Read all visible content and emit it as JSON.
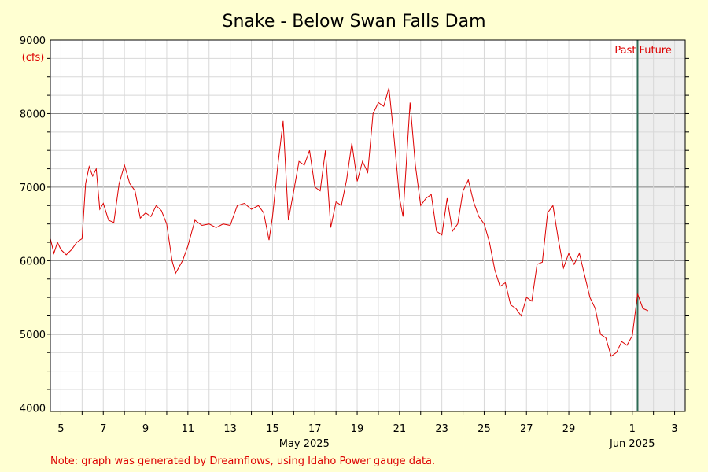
{
  "chart_data": {
    "type": "line",
    "title": "Snake - Below Swan Falls Dam",
    "y_unit": "(cfs)",
    "ylim": [
      3950,
      9000
    ],
    "xlim": [
      "2025-05-04T12:00",
      "2025-06-03T12:00"
    ],
    "y_ticks": [
      4000,
      5000,
      6000,
      7000,
      8000,
      9000
    ],
    "x_ticks": [
      {
        "label": "5",
        "date": "2025-05-05"
      },
      {
        "label": "7",
        "date": "2025-05-07"
      },
      {
        "label": "9",
        "date": "2025-05-09"
      },
      {
        "label": "11",
        "date": "2025-05-11"
      },
      {
        "label": "13",
        "date": "2025-05-13"
      },
      {
        "label": "15",
        "date": "2025-05-15"
      },
      {
        "label": "17",
        "date": "2025-05-17"
      },
      {
        "label": "19",
        "date": "2025-05-19"
      },
      {
        "label": "21",
        "date": "2025-05-21"
      },
      {
        "label": "23",
        "date": "2025-05-23"
      },
      {
        "label": "25",
        "date": "2025-05-25"
      },
      {
        "label": "27",
        "date": "2025-05-27"
      },
      {
        "label": "29",
        "date": "2025-05-29"
      },
      {
        "label": "1",
        "date": "2025-06-01"
      },
      {
        "label": "3",
        "date": "2025-06-03"
      }
    ],
    "month_labels": [
      {
        "label": "May 2025",
        "date": "2025-05-16T12:00"
      },
      {
        "label": "Jun 2025",
        "date": "2025-06-01"
      }
    ],
    "now": "2025-06-01T06:00",
    "past_label": "Past",
    "future_label": "Future",
    "grid": true,
    "line_color": "#DD0000",
    "now_line_color": "#2E6B55",
    "future_shade_color": "#EEEEEE",
    "series": [
      {
        "points": [
          [
            "2025-05-04T12:00",
            6300
          ],
          [
            "2025-05-04T16:00",
            6100
          ],
          [
            "2025-05-04T20:00",
            6250
          ],
          [
            "2025-05-05T00:00",
            6150
          ],
          [
            "2025-05-05T06:00",
            6080
          ],
          [
            "2025-05-05T12:00",
            6150
          ],
          [
            "2025-05-05T18:00",
            6250
          ],
          [
            "2025-05-06T00:00",
            6300
          ],
          [
            "2025-05-06T04:00",
            7050
          ],
          [
            "2025-05-06T08:00",
            7280
          ],
          [
            "2025-05-06T12:00",
            7150
          ],
          [
            "2025-05-06T16:00",
            7250
          ],
          [
            "2025-05-06T20:00",
            6700
          ],
          [
            "2025-05-07T00:00",
            6780
          ],
          [
            "2025-05-07T06:00",
            6550
          ],
          [
            "2025-05-07T12:00",
            6520
          ],
          [
            "2025-05-07T18:00",
            7050
          ],
          [
            "2025-05-08T00:00",
            7300
          ],
          [
            "2025-05-08T06:00",
            7050
          ],
          [
            "2025-05-08T12:00",
            6950
          ],
          [
            "2025-05-08T18:00",
            6580
          ],
          [
            "2025-05-09T00:00",
            6650
          ],
          [
            "2025-05-09T06:00",
            6600
          ],
          [
            "2025-05-09T12:00",
            6750
          ],
          [
            "2025-05-09T18:00",
            6680
          ],
          [
            "2025-05-10T00:00",
            6500
          ],
          [
            "2025-05-10T06:00",
            6000
          ],
          [
            "2025-05-10T10:00",
            5830
          ],
          [
            "2025-05-10T18:00",
            6000
          ],
          [
            "2025-05-11T00:00",
            6200
          ],
          [
            "2025-05-11T08:00",
            6550
          ],
          [
            "2025-05-11T16:00",
            6480
          ],
          [
            "2025-05-12T00:00",
            6500
          ],
          [
            "2025-05-12T08:00",
            6450
          ],
          [
            "2025-05-12T16:00",
            6500
          ],
          [
            "2025-05-13T00:00",
            6480
          ],
          [
            "2025-05-13T08:00",
            6750
          ],
          [
            "2025-05-13T16:00",
            6780
          ],
          [
            "2025-05-14T00:00",
            6700
          ],
          [
            "2025-05-14T08:00",
            6750
          ],
          [
            "2025-05-14T14:00",
            6650
          ],
          [
            "2025-05-14T20:00",
            6280
          ],
          [
            "2025-05-15T00:00",
            6600
          ],
          [
            "2025-05-15T06:00",
            7300
          ],
          [
            "2025-05-15T12:00",
            7900
          ],
          [
            "2025-05-15T18:00",
            6550
          ],
          [
            "2025-05-16T00:00",
            6950
          ],
          [
            "2025-05-16T06:00",
            7350
          ],
          [
            "2025-05-16T12:00",
            7300
          ],
          [
            "2025-05-16T18:00",
            7500
          ],
          [
            "2025-05-17T00:00",
            7000
          ],
          [
            "2025-05-17T06:00",
            6950
          ],
          [
            "2025-05-17T12:00",
            7500
          ],
          [
            "2025-05-17T18:00",
            6450
          ],
          [
            "2025-05-18T00:00",
            6800
          ],
          [
            "2025-05-18T06:00",
            6750
          ],
          [
            "2025-05-18T12:00",
            7100
          ],
          [
            "2025-05-18T18:00",
            7600
          ],
          [
            "2025-05-19T00:00",
            7080
          ],
          [
            "2025-05-19T06:00",
            7350
          ],
          [
            "2025-05-19T12:00",
            7200
          ],
          [
            "2025-05-19T18:00",
            8000
          ],
          [
            "2025-05-20T00:00",
            8150
          ],
          [
            "2025-05-20T06:00",
            8100
          ],
          [
            "2025-05-20T12:00",
            8350
          ],
          [
            "2025-05-20T18:00",
            7650
          ],
          [
            "2025-05-21T00:00",
            6850
          ],
          [
            "2025-05-21T04:00",
            6600
          ],
          [
            "2025-05-21T12:00",
            8150
          ],
          [
            "2025-05-21T18:00",
            7300
          ],
          [
            "2025-05-22T00:00",
            6750
          ],
          [
            "2025-05-22T06:00",
            6850
          ],
          [
            "2025-05-22T12:00",
            6900
          ],
          [
            "2025-05-22T18:00",
            6400
          ],
          [
            "2025-05-23T00:00",
            6350
          ],
          [
            "2025-05-23T06:00",
            6850
          ],
          [
            "2025-05-23T12:00",
            6400
          ],
          [
            "2025-05-23T18:00",
            6500
          ],
          [
            "2025-05-24T00:00",
            6950
          ],
          [
            "2025-05-24T06:00",
            7100
          ],
          [
            "2025-05-24T12:00",
            6800
          ],
          [
            "2025-05-24T18:00",
            6600
          ],
          [
            "2025-05-25T00:00",
            6500
          ],
          [
            "2025-05-25T06:00",
            6250
          ],
          [
            "2025-05-25T12:00",
            5880
          ],
          [
            "2025-05-25T18:00",
            5650
          ],
          [
            "2025-05-26T00:00",
            5700
          ],
          [
            "2025-05-26T06:00",
            5400
          ],
          [
            "2025-05-26T12:00",
            5350
          ],
          [
            "2025-05-26T18:00",
            5250
          ],
          [
            "2025-05-27T00:00",
            5500
          ],
          [
            "2025-05-27T06:00",
            5450
          ],
          [
            "2025-05-27T12:00",
            5950
          ],
          [
            "2025-05-27T18:00",
            5980
          ],
          [
            "2025-05-28T00:00",
            6650
          ],
          [
            "2025-05-28T06:00",
            6750
          ],
          [
            "2025-05-28T12:00",
            6300
          ],
          [
            "2025-05-28T18:00",
            5900
          ],
          [
            "2025-05-29T00:00",
            6100
          ],
          [
            "2025-05-29T06:00",
            5950
          ],
          [
            "2025-05-29T12:00",
            6100
          ],
          [
            "2025-05-29T18:00",
            5800
          ],
          [
            "2025-05-30T00:00",
            5500
          ],
          [
            "2025-05-30T06:00",
            5350
          ],
          [
            "2025-05-30T12:00",
            5000
          ],
          [
            "2025-05-30T18:00",
            4950
          ],
          [
            "2025-05-31T00:00",
            4700
          ],
          [
            "2025-05-31T06:00",
            4750
          ],
          [
            "2025-05-31T12:00",
            4900
          ],
          [
            "2025-05-31T18:00",
            4850
          ],
          [
            "2025-06-01T00:00",
            4980
          ],
          [
            "2025-06-01T06:00",
            5550
          ],
          [
            "2025-06-01T12:00",
            5350
          ],
          [
            "2025-06-01T18:00",
            5320
          ]
        ]
      }
    ],
    "note": "Note: graph was generated by Dreamflows, using Idaho Power gauge data."
  }
}
